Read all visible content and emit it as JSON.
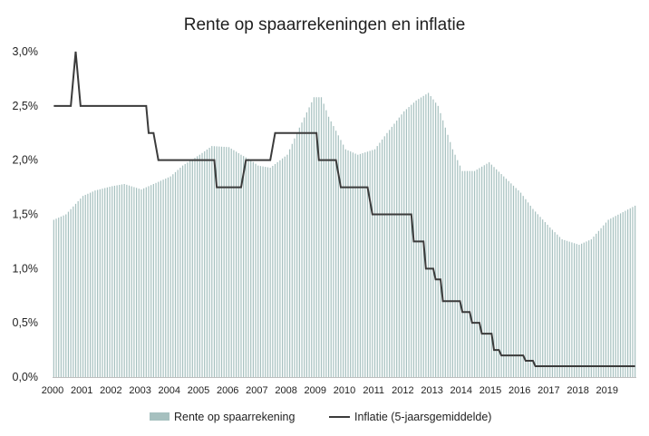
{
  "chart_data": {
    "type": "bar+line",
    "title": "Rente op spaarrekeningen en inflatie",
    "xlabel": "",
    "ylabel": "",
    "ylim": [
      0,
      3.0
    ],
    "x_range": [
      "2000-01",
      "2019-12"
    ],
    "y_ticks": [
      "0,0%",
      "0,5%",
      "1,0%",
      "1,5%",
      "2,0%",
      "2,5%",
      "3,0%"
    ],
    "x_ticks": [
      "2000",
      "2001",
      "2002",
      "2003",
      "2004",
      "2005",
      "2006",
      "2007",
      "2008",
      "2009",
      "2010",
      "2011",
      "2012",
      "2013",
      "2014",
      "2015",
      "2016",
      "2017",
      "2018",
      "2019"
    ],
    "grid": false,
    "legend_position": "bottom",
    "series": [
      {
        "name": "Rente op spaarrekening",
        "type": "bar",
        "color": "#a6c0bf",
        "frequency": "monthly",
        "points": [
          [
            "2000-01",
            1.45
          ],
          [
            "2000-06",
            1.5
          ],
          [
            "2001-01",
            1.67
          ],
          [
            "2001-06",
            1.72
          ],
          [
            "2002-01",
            1.76
          ],
          [
            "2002-06",
            1.78
          ],
          [
            "2003-01",
            1.73
          ],
          [
            "2003-06",
            1.78
          ],
          [
            "2004-01",
            1.85
          ],
          [
            "2004-06",
            1.95
          ],
          [
            "2005-01",
            2.05
          ],
          [
            "2005-06",
            2.13
          ],
          [
            "2006-01",
            2.12
          ],
          [
            "2006-06",
            2.05
          ],
          [
            "2006-10",
            2.0
          ],
          [
            "2007-01",
            1.95
          ],
          [
            "2007-06",
            1.93
          ],
          [
            "2008-01",
            2.05
          ],
          [
            "2008-06",
            2.3
          ],
          [
            "2008-12",
            2.58
          ],
          [
            "2009-03",
            2.58
          ],
          [
            "2009-06",
            2.4
          ],
          [
            "2010-01",
            2.1
          ],
          [
            "2010-06",
            2.05
          ],
          [
            "2011-01",
            2.1
          ],
          [
            "2011-06",
            2.25
          ],
          [
            "2012-01",
            2.45
          ],
          [
            "2012-06",
            2.55
          ],
          [
            "2012-11",
            2.62
          ],
          [
            "2013-03",
            2.5
          ],
          [
            "2013-09",
            2.1
          ],
          [
            "2014-01",
            1.9
          ],
          [
            "2014-06",
            1.9
          ],
          [
            "2014-12",
            1.98
          ],
          [
            "2015-06",
            1.85
          ],
          [
            "2016-01",
            1.7
          ],
          [
            "2016-06",
            1.55
          ],
          [
            "2017-01",
            1.38
          ],
          [
            "2017-06",
            1.27
          ],
          [
            "2018-01",
            1.22
          ],
          [
            "2018-06",
            1.27
          ],
          [
            "2019-01",
            1.45
          ],
          [
            "2019-12",
            1.58
          ]
        ]
      },
      {
        "name": "Inflatie (5-jaarsgemiddelde)",
        "type": "line",
        "color": "#3b3b3b",
        "frequency": "monthly",
        "points": [
          [
            "2000-01",
            2.5
          ],
          [
            "2000-08",
            2.5
          ],
          [
            "2000-10",
            3.0
          ],
          [
            "2000-12",
            2.5
          ],
          [
            "2003-03",
            2.5
          ],
          [
            "2003-04",
            2.25
          ],
          [
            "2003-06",
            2.25
          ],
          [
            "2003-08",
            2.0
          ],
          [
            "2005-07",
            2.0
          ],
          [
            "2005-08",
            1.75
          ],
          [
            "2006-06",
            1.75
          ],
          [
            "2006-08",
            2.0
          ],
          [
            "2007-06",
            2.0
          ],
          [
            "2007-08",
            2.25
          ],
          [
            "2009-01",
            2.25
          ],
          [
            "2009-02",
            2.0
          ],
          [
            "2009-09",
            2.0
          ],
          [
            "2009-11",
            1.75
          ],
          [
            "2010-10",
            1.75
          ],
          [
            "2010-12",
            1.5
          ],
          [
            "2012-04",
            1.5
          ],
          [
            "2012-05",
            1.25
          ],
          [
            "2012-09",
            1.25
          ],
          [
            "2012-10",
            1.0
          ],
          [
            "2013-01",
            1.0
          ],
          [
            "2013-02",
            0.9
          ],
          [
            "2013-04",
            0.9
          ],
          [
            "2013-05",
            0.7
          ],
          [
            "2013-12",
            0.7
          ],
          [
            "2014-01",
            0.6
          ],
          [
            "2014-04",
            0.6
          ],
          [
            "2014-05",
            0.5
          ],
          [
            "2014-08",
            0.5
          ],
          [
            "2014-09",
            0.4
          ],
          [
            "2015-01",
            0.4
          ],
          [
            "2015-02",
            0.25
          ],
          [
            "2015-04",
            0.25
          ],
          [
            "2015-05",
            0.2
          ],
          [
            "2016-02",
            0.2
          ],
          [
            "2016-03",
            0.15
          ],
          [
            "2016-06",
            0.15
          ],
          [
            "2016-07",
            0.1
          ],
          [
            "2019-12",
            0.1
          ]
        ]
      }
    ]
  }
}
